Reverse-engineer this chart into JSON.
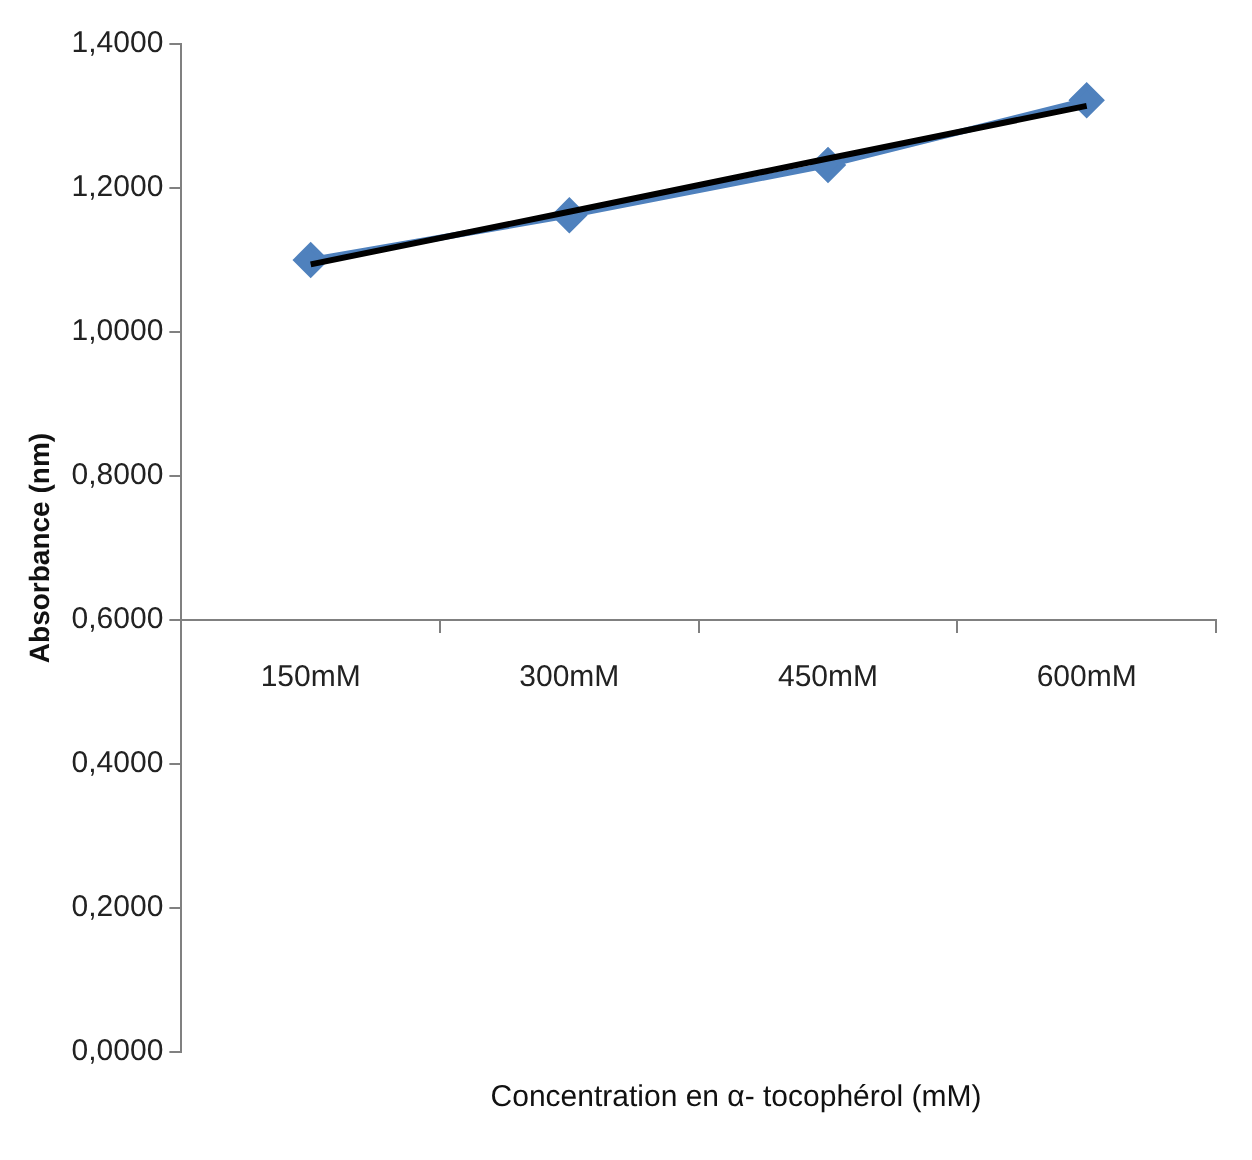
{
  "chart_data": {
    "type": "line",
    "xlabel": "Concentration en α- tocophérol (mM)",
    "ylabel": "Absorbance (nm)",
    "categories": [
      "150mM",
      "300mM",
      "450mM",
      "600mM"
    ],
    "series": [
      {
        "color": "#4f81bd",
        "values": [
          1.1,
          1.162,
          1.232,
          1.322
        ],
        "marker": "diamond"
      },
      {
        "color": "#000000",
        "values": [
          1.094,
          1.167,
          1.241,
          1.314
        ],
        "marker": "none"
      }
    ],
    "ylim": [
      0,
      1.4
    ],
    "yticks": [
      {
        "value": 0,
        "label": "0,0000"
      },
      {
        "value": 0.2,
        "label": "0,2000"
      },
      {
        "value": 0.4,
        "label": "0,4000"
      },
      {
        "value": 0.6,
        "label": "0,6000"
      },
      {
        "value": 0.8,
        "label": "0,8000"
      },
      {
        "value": 1,
        "label": "1,0000"
      },
      {
        "value": 1.2,
        "label": "1,2000"
      },
      {
        "value": 1.4,
        "label": "1,4000"
      }
    ],
    "grid": false,
    "legend": false
  }
}
